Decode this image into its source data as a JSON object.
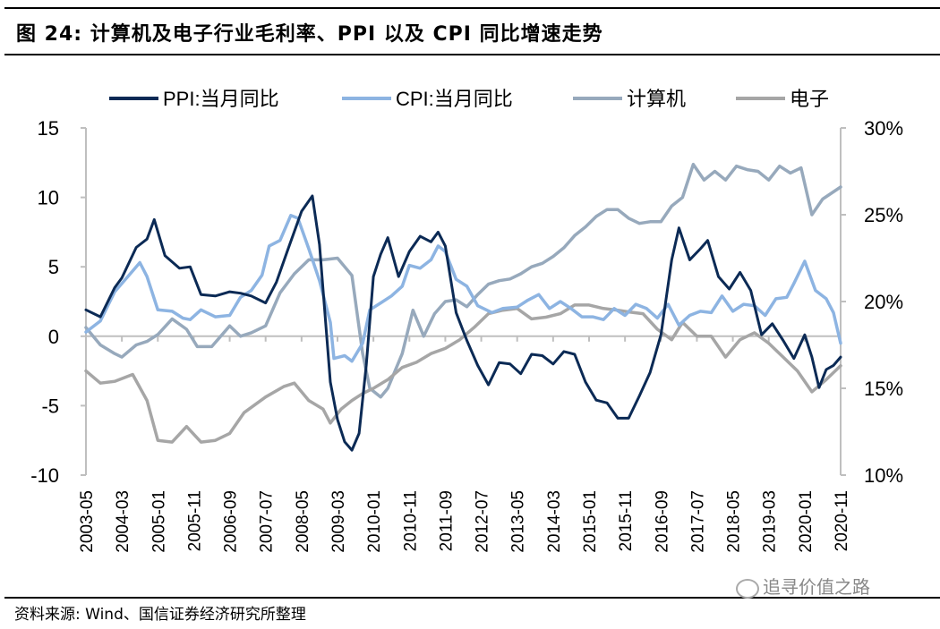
{
  "header": {
    "title": "图 24:  计算机及电子行业毛利率、PPI 以及 CPI 同比增速走势"
  },
  "footer": {
    "source": "资料来源: Wind、国信证券经济研究所整理",
    "watermark": "追寻价值之路",
    "watermark_icon": "wechat-icon"
  },
  "chart_data": {
    "type": "line",
    "title": "计算机及电子行业毛利率、PPI 以及 CPI 同比增速走势",
    "legend_position": "top",
    "y_left": {
      "lim": [
        -10,
        15
      ],
      "ticks": [
        "15",
        "10",
        "5",
        "0",
        "-5",
        "-10"
      ],
      "tick_values": [
        15,
        10,
        5,
        0,
        -5,
        -10
      ]
    },
    "y_right": {
      "lim": [
        10,
        30
      ],
      "ticks": [
        "30%",
        "25%",
        "20%",
        "15%",
        "10%"
      ],
      "tick_values": [
        30,
        25,
        20,
        15,
        10
      ]
    },
    "x_ticks": [
      "2003-05",
      "2004-03",
      "2005-01",
      "2005-11",
      "2006-09",
      "2007-07",
      "2008-05",
      "2009-03",
      "2010-01",
      "2010-11",
      "2011-09",
      "2012-07",
      "2013-05",
      "2014-03",
      "2015-01",
      "2015-11",
      "2016-09",
      "2017-07",
      "2018-05",
      "2019-03",
      "2020-01",
      "2020-11"
    ],
    "x_range": [
      "2003-05",
      "2020-11"
    ],
    "grid": false,
    "series": [
      {
        "name": "PPI:当月同比",
        "axis": "left",
        "color": "#0b2a55",
        "x": [
          "2003-05",
          "2003-09",
          "2004-01",
          "2004-03",
          "2004-07",
          "2004-10",
          "2004-12",
          "2005-03",
          "2005-07",
          "2005-10",
          "2006-01",
          "2006-05",
          "2006-09",
          "2006-12",
          "2007-03",
          "2007-07",
          "2007-10",
          "2008-01",
          "2008-05",
          "2008-08",
          "2008-10",
          "2009-01",
          "2009-03",
          "2009-05",
          "2009-07",
          "2009-09",
          "2009-11",
          "2010-01",
          "2010-03",
          "2010-05",
          "2010-08",
          "2010-11",
          "2011-02",
          "2011-05",
          "2011-07",
          "2011-09",
          "2011-12",
          "2012-03",
          "2012-06",
          "2012-09",
          "2012-12",
          "2013-03",
          "2013-06",
          "2013-09",
          "2013-12",
          "2014-03",
          "2014-06",
          "2014-09",
          "2014-12",
          "2015-03",
          "2015-06",
          "2015-09",
          "2015-12",
          "2016-03",
          "2016-06",
          "2016-09",
          "2016-12",
          "2017-02",
          "2017-05",
          "2017-08",
          "2017-10",
          "2018-01",
          "2018-04",
          "2018-07",
          "2018-10",
          "2019-01",
          "2019-04",
          "2019-07",
          "2019-10",
          "2020-01",
          "2020-03",
          "2020-05",
          "2020-07",
          "2020-09",
          "2020-11"
        ],
        "values": [
          1.9,
          1.4,
          3.5,
          4.2,
          6.4,
          7.0,
          8.4,
          5.8,
          4.9,
          5.0,
          3.0,
          2.9,
          3.2,
          3.1,
          2.9,
          2.4,
          3.9,
          6.1,
          9.0,
          10.1,
          6.6,
          -3.3,
          -6.0,
          -7.6,
          -8.2,
          -7.0,
          -2.1,
          4.3,
          5.9,
          7.1,
          4.3,
          6.1,
          7.2,
          6.8,
          7.5,
          6.5,
          1.7,
          -0.3,
          -2.1,
          -3.5,
          -1.9,
          -2.0,
          -2.7,
          -1.3,
          -1.4,
          -2.0,
          -1.1,
          -1.3,
          -3.3,
          -4.6,
          -4.8,
          -5.9,
          -5.9,
          -4.3,
          -2.6,
          0.1,
          5.5,
          7.8,
          5.5,
          6.3,
          6.9,
          4.3,
          3.4,
          4.6,
          3.3,
          0.1,
          0.9,
          -0.3,
          -1.6,
          0.1,
          -1.5,
          -3.7,
          -2.4,
          -2.1,
          -1.5
        ]
      },
      {
        "name": "CPI:当月同比",
        "axis": "left",
        "color": "#8db4e2",
        "x": [
          "2003-05",
          "2003-09",
          "2004-01",
          "2004-05",
          "2004-08",
          "2004-10",
          "2005-01",
          "2005-05",
          "2005-08",
          "2005-10",
          "2006-01",
          "2006-05",
          "2006-09",
          "2006-12",
          "2007-03",
          "2007-06",
          "2007-08",
          "2007-11",
          "2008-02",
          "2008-04",
          "2008-07",
          "2008-10",
          "2009-01",
          "2009-02",
          "2009-05",
          "2009-07",
          "2009-10",
          "2009-12",
          "2010-03",
          "2010-06",
          "2010-09",
          "2010-11",
          "2011-02",
          "2011-05",
          "2011-07",
          "2011-09",
          "2011-12",
          "2012-03",
          "2012-06",
          "2012-10",
          "2013-01",
          "2013-05",
          "2013-08",
          "2013-11",
          "2014-02",
          "2014-05",
          "2014-08",
          "2014-11",
          "2015-02",
          "2015-05",
          "2015-08",
          "2015-11",
          "2016-02",
          "2016-05",
          "2016-08",
          "2016-11",
          "2017-02",
          "2017-05",
          "2017-08",
          "2017-11",
          "2018-02",
          "2018-05",
          "2018-08",
          "2018-11",
          "2019-02",
          "2019-05",
          "2019-08",
          "2019-10",
          "2020-01",
          "2020-04",
          "2020-07",
          "2020-09",
          "2020-11"
        ],
        "values": [
          0.3,
          1.1,
          3.2,
          4.4,
          5.3,
          4.3,
          1.9,
          1.8,
          1.3,
          1.2,
          1.9,
          1.4,
          1.5,
          2.8,
          3.3,
          4.4,
          6.5,
          6.9,
          8.7,
          8.5,
          6.3,
          4.0,
          1.0,
          -1.6,
          -1.4,
          -1.8,
          -0.5,
          1.9,
          2.4,
          2.9,
          3.6,
          5.1,
          4.9,
          5.5,
          6.5,
          6.1,
          4.1,
          3.6,
          2.2,
          1.7,
          2.0,
          2.1,
          2.6,
          3.0,
          2.0,
          2.5,
          2.0,
          1.4,
          1.4,
          1.2,
          2.0,
          1.5,
          2.3,
          2.0,
          1.3,
          2.3,
          0.8,
          1.5,
          1.8,
          1.7,
          2.9,
          1.8,
          2.3,
          2.2,
          1.5,
          2.7,
          2.8,
          3.8,
          5.4,
          3.3,
          2.7,
          1.7,
          -0.5
        ]
      },
      {
        "name": "计算机",
        "axis": "right",
        "color": "#97a9bc",
        "x": [
          "2003-05",
          "2003-09",
          "2004-01",
          "2004-03",
          "2004-07",
          "2004-10",
          "2005-01",
          "2005-05",
          "2005-09",
          "2005-12",
          "2006-04",
          "2006-09",
          "2006-12",
          "2007-03",
          "2007-07",
          "2007-11",
          "2008-03",
          "2008-07",
          "2008-11",
          "2009-03",
          "2009-07",
          "2009-10",
          "2009-12",
          "2010-03",
          "2010-05",
          "2010-09",
          "2010-12",
          "2011-03",
          "2011-06",
          "2011-09",
          "2011-12",
          "2012-03",
          "2012-06",
          "2012-09",
          "2012-12",
          "2013-03",
          "2013-06",
          "2013-09",
          "2013-12",
          "2014-03",
          "2014-06",
          "2014-09",
          "2014-12",
          "2015-03",
          "2015-06",
          "2015-09",
          "2015-12",
          "2016-03",
          "2016-06",
          "2016-09",
          "2016-12",
          "2017-03",
          "2017-06",
          "2017-09",
          "2017-12",
          "2018-03",
          "2018-06",
          "2018-09",
          "2018-12",
          "2019-03",
          "2019-06",
          "2019-09",
          "2019-12",
          "2020-03",
          "2020-06",
          "2020-11"
        ],
        "values": [
          18.5,
          17.5,
          17.0,
          16.8,
          17.5,
          17.7,
          18.1,
          19.0,
          18.4,
          17.4,
          17.4,
          18.6,
          18.0,
          18.2,
          18.6,
          20.5,
          21.6,
          22.4,
          22.4,
          22.5,
          21.5,
          17.0,
          15.0,
          14.5,
          15.0,
          17.0,
          19.5,
          18.0,
          19.3,
          20.0,
          20.1,
          19.7,
          20.4,
          21.0,
          21.2,
          21.3,
          21.6,
          22.0,
          22.2,
          22.6,
          23.1,
          23.8,
          24.3,
          24.9,
          25.3,
          25.3,
          24.8,
          24.5,
          24.6,
          24.6,
          25.5,
          26.0,
          27.9,
          27.0,
          27.5,
          27.0,
          27.8,
          27.6,
          27.5,
          27.0,
          27.8,
          27.4,
          27.7,
          25.0,
          25.9,
          26.6
        ]
      },
      {
        "name": "电子",
        "axis": "right",
        "color": "#a6a6a6",
        "x": [
          "2003-05",
          "2003-09",
          "2004-01",
          "2004-06",
          "2004-10",
          "2005-01",
          "2005-05",
          "2005-09",
          "2006-01",
          "2006-05",
          "2006-09",
          "2007-01",
          "2007-07",
          "2007-12",
          "2008-03",
          "2008-07",
          "2008-11",
          "2009-01",
          "2009-04",
          "2009-07",
          "2009-10",
          "2010-01",
          "2010-05",
          "2010-09",
          "2011-01",
          "2011-05",
          "2011-09",
          "2012-01",
          "2012-05",
          "2012-09",
          "2013-01",
          "2013-05",
          "2013-09",
          "2014-01",
          "2014-05",
          "2014-09",
          "2015-01",
          "2015-05",
          "2015-09",
          "2015-12",
          "2016-04",
          "2016-08",
          "2016-12",
          "2017-03",
          "2017-07",
          "2017-11",
          "2018-03",
          "2018-07",
          "2018-11",
          "2019-03",
          "2019-07",
          "2019-11",
          "2020-03",
          "2020-07",
          "2020-11"
        ],
        "values": [
          16.0,
          15.3,
          15.4,
          15.8,
          14.3,
          12.0,
          11.9,
          12.8,
          11.9,
          12.0,
          12.4,
          13.6,
          14.5,
          15.1,
          15.3,
          14.3,
          13.8,
          13.0,
          13.8,
          14.3,
          14.7,
          15.0,
          15.5,
          16.2,
          16.5,
          17.0,
          17.3,
          17.8,
          18.5,
          19.3,
          19.5,
          19.6,
          19.0,
          19.1,
          19.3,
          19.8,
          19.8,
          19.6,
          19.5,
          19.4,
          19.3,
          18.4,
          17.8,
          18.8,
          18.0,
          18.0,
          16.8,
          17.8,
          18.2,
          17.6,
          16.8,
          16.0,
          14.8,
          15.5,
          16.3
        ]
      }
    ]
  }
}
